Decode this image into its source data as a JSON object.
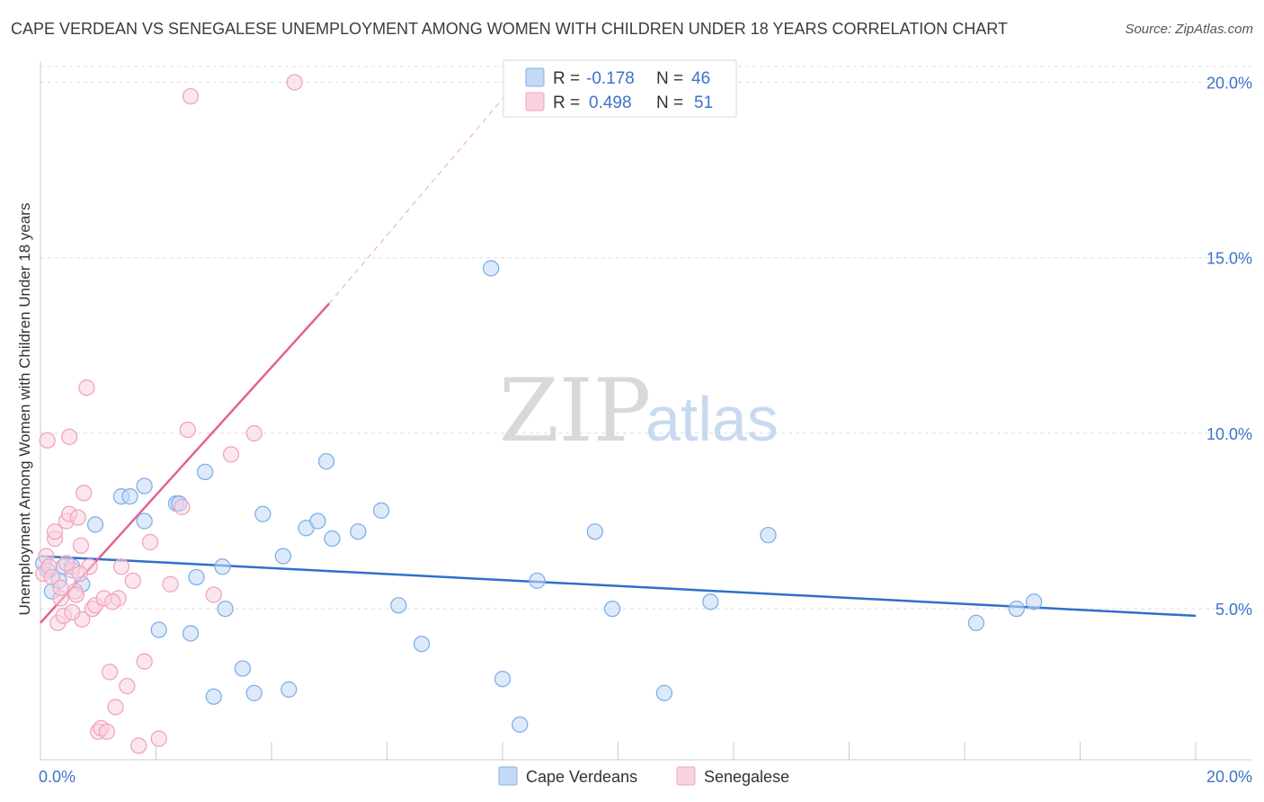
{
  "title": "CAPE VERDEAN VS SENEGALESE UNEMPLOYMENT AMONG WOMEN WITH CHILDREN UNDER 18 YEARS CORRELATION CHART",
  "source": "Source: ZipAtlas.com",
  "watermark": {
    "zip": "ZIP",
    "atlas": "atlas"
  },
  "legend_stats": [
    {
      "r_label": "R =",
      "r_value": "-0.178",
      "n_label": "N =",
      "n_value": "46"
    },
    {
      "r_label": "R =",
      "r_value": "0.498",
      "n_label": "N =",
      "n_value": "51"
    }
  ],
  "chart_data": {
    "type": "scatter",
    "ylabel": "Unemployment Among Women with Children Under 18 years",
    "xlim": [
      0,
      20
    ],
    "ylim": [
      0.7,
      20.5
    ],
    "x_tick_labels": [
      "0.0%",
      "20.0%"
    ],
    "y_ticks": [
      {
        "value": 5,
        "label": "5.0%"
      },
      {
        "value": 10,
        "label": "10.0%"
      },
      {
        "value": 15,
        "label": "15.0%"
      },
      {
        "value": 20,
        "label": "20.0%"
      }
    ],
    "grid": "horizontal dashed",
    "legend_position": "top-center and bottom",
    "series": [
      {
        "name": "Cape Verdeans",
        "color": "#7fb0ea",
        "fill": "#c3d9f5",
        "line_color": "#2f6fcc",
        "trend": {
          "x": [
            0,
            20
          ],
          "y": [
            6.5,
            4.8
          ]
        },
        "points": [
          [
            0.05,
            6.3
          ],
          [
            0.12,
            6.1
          ],
          [
            0.2,
            5.5
          ],
          [
            0.32,
            5.8
          ],
          [
            0.4,
            6.2
          ],
          [
            0.55,
            6.2
          ],
          [
            0.72,
            5.7
          ],
          [
            0.95,
            7.4
          ],
          [
            1.4,
            8.2
          ],
          [
            1.55,
            8.2
          ],
          [
            1.8,
            7.5
          ],
          [
            2.05,
            4.4
          ],
          [
            2.35,
            8.0
          ],
          [
            2.4,
            8.0
          ],
          [
            2.6,
            4.3
          ],
          [
            2.7,
            5.9
          ],
          [
            2.85,
            8.9
          ],
          [
            3.0,
            2.5
          ],
          [
            3.15,
            6.2
          ],
          [
            3.2,
            5.0
          ],
          [
            3.5,
            3.3
          ],
          [
            3.7,
            2.6
          ],
          [
            3.85,
            7.7
          ],
          [
            4.2,
            6.5
          ],
          [
            4.3,
            2.7
          ],
          [
            4.6,
            7.3
          ],
          [
            4.8,
            7.5
          ],
          [
            4.95,
            9.2
          ],
          [
            5.05,
            7.0
          ],
          [
            5.5,
            7.2
          ],
          [
            5.9,
            7.8
          ],
          [
            6.2,
            5.1
          ],
          [
            6.6,
            4.0
          ],
          [
            7.8,
            14.7
          ],
          [
            8.0,
            3.0
          ],
          [
            8.3,
            1.7
          ],
          [
            8.6,
            5.8
          ],
          [
            9.6,
            7.2
          ],
          [
            9.9,
            5.0
          ],
          [
            10.8,
            2.6
          ],
          [
            11.6,
            5.2
          ],
          [
            12.6,
            7.1
          ],
          [
            16.2,
            4.6
          ],
          [
            16.9,
            5.0
          ],
          [
            17.2,
            5.2
          ],
          [
            1.8,
            8.5
          ]
        ]
      },
      {
        "name": "Senegalese",
        "color": "#f1a4bf",
        "fill": "#f9d2df",
        "line_color": "#e26390",
        "trend": {
          "x": [
            0,
            5
          ],
          "y": [
            4.6,
            13.7
          ]
        },
        "trend_extension": {
          "x": [
            5,
            8.5
          ],
          "y": [
            13.7,
            20.5
          ]
        },
        "points": [
          [
            0.05,
            6.0
          ],
          [
            0.1,
            6.5
          ],
          [
            0.15,
            6.2
          ],
          [
            0.2,
            5.9
          ],
          [
            0.25,
            7.0
          ],
          [
            0.3,
            4.6
          ],
          [
            0.35,
            5.3
          ],
          [
            0.4,
            4.8
          ],
          [
            0.45,
            7.5
          ],
          [
            0.5,
            7.7
          ],
          [
            0.55,
            6.1
          ],
          [
            0.6,
            5.5
          ],
          [
            0.65,
            7.6
          ],
          [
            0.7,
            6.8
          ],
          [
            0.72,
            4.7
          ],
          [
            0.75,
            8.3
          ],
          [
            0.8,
            11.3
          ],
          [
            0.85,
            6.2
          ],
          [
            0.9,
            5.0
          ],
          [
            0.95,
            5.1
          ],
          [
            1.0,
            1.5
          ],
          [
            1.05,
            1.6
          ],
          [
            1.1,
            5.3
          ],
          [
            1.15,
            1.5
          ],
          [
            1.2,
            3.2
          ],
          [
            1.3,
            2.2
          ],
          [
            1.35,
            5.3
          ],
          [
            1.5,
            2.8
          ],
          [
            1.6,
            5.8
          ],
          [
            1.7,
            1.1
          ],
          [
            1.8,
            3.5
          ],
          [
            1.9,
            6.9
          ],
          [
            2.05,
            1.3
          ],
          [
            2.25,
            5.7
          ],
          [
            2.45,
            7.9
          ],
          [
            2.55,
            10.1
          ],
          [
            2.6,
            19.6
          ],
          [
            3.0,
            5.4
          ],
          [
            3.3,
            9.4
          ],
          [
            3.7,
            10.0
          ],
          [
            4.4,
            20.0
          ],
          [
            0.12,
            9.8
          ],
          [
            0.25,
            7.2
          ],
          [
            0.35,
            5.6
          ],
          [
            0.45,
            6.3
          ],
          [
            0.5,
            9.9
          ],
          [
            0.55,
            4.9
          ],
          [
            0.62,
            5.4
          ],
          [
            0.68,
            6.0
          ],
          [
            1.25,
            5.2
          ],
          [
            1.4,
            6.2
          ]
        ]
      }
    ]
  }
}
